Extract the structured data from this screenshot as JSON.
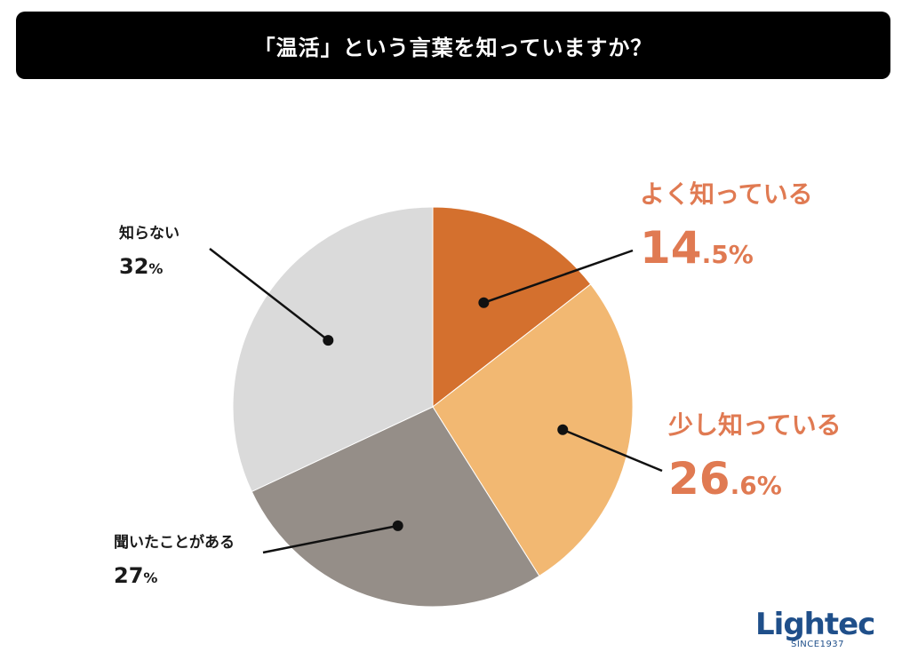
{
  "chart_data": {
    "type": "pie",
    "title": "「温活」という言葉を知っていますか？",
    "start_angle_deg": 0,
    "direction": "clockwise",
    "slices": [
      {
        "label": "よく知っている",
        "value": 14.5,
        "int_part": "14",
        "dec_part": ".5%",
        "color": "#d4702e",
        "text_color": "#e07a52"
      },
      {
        "label": "少し知っている",
        "value": 26.6,
        "int_part": "26",
        "dec_part": ".6%",
        "color": "#f2b872",
        "text_color": "#e07a52"
      },
      {
        "label": "聞いたことがある",
        "value": 27,
        "int_part": "27",
        "dec_part": "%",
        "color": "#958e88",
        "text_color": "#1a1a1a"
      },
      {
        "label": "知らない",
        "value": 32,
        "int_part": "32",
        "dec_part": "%",
        "color": "#dadada",
        "text_color": "#1a1a1a"
      }
    ]
  },
  "logo": {
    "text": "Lightec",
    "subtext": "SINCE1937",
    "color": "#1f4f8a"
  }
}
